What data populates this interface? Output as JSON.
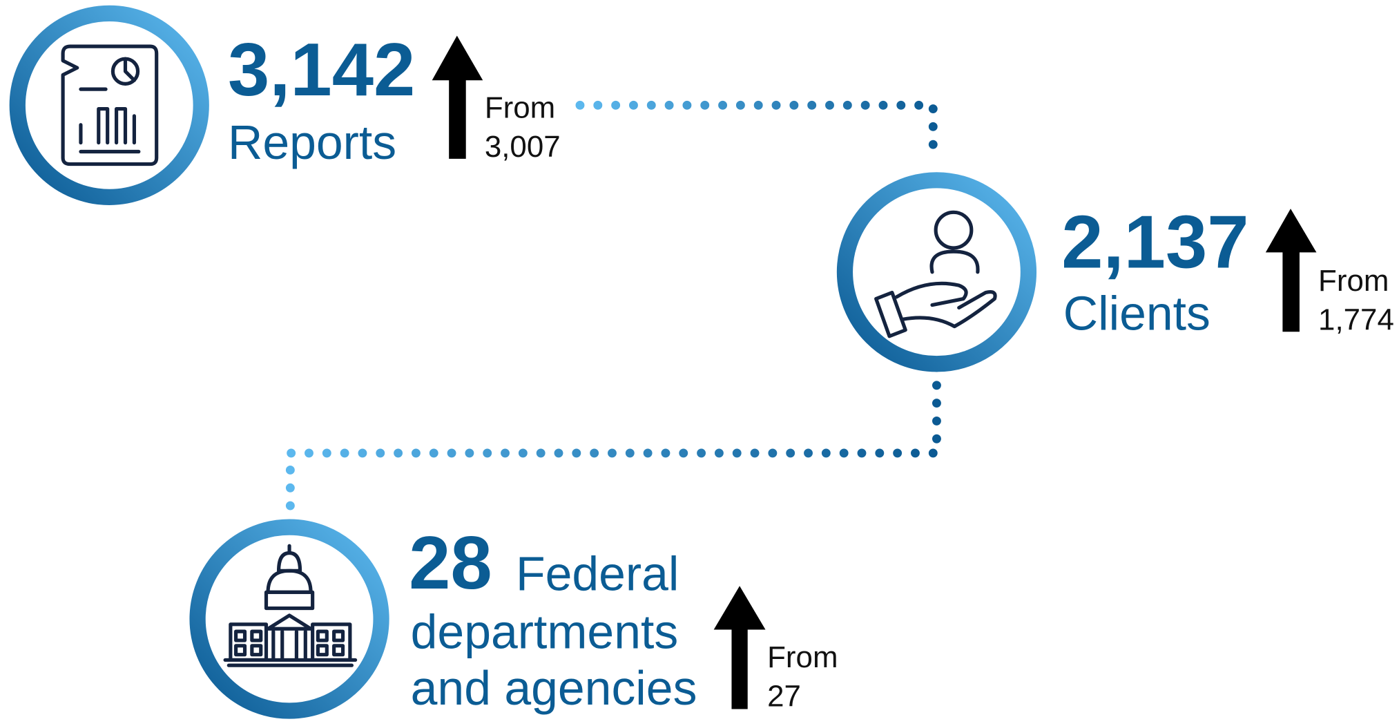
{
  "items": [
    {
      "value": "3,142",
      "label_lines": [
        "Reports"
      ],
      "from_label": "From",
      "from_value": "3,007"
    },
    {
      "value": "2,137",
      "label_lines": [
        "Clients"
      ],
      "from_label": "From",
      "from_value": "1,774"
    },
    {
      "value": "28",
      "label_lines": [
        "Federal",
        "departments",
        "and agencies"
      ],
      "from_label": "From",
      "from_value": "27"
    }
  ]
}
